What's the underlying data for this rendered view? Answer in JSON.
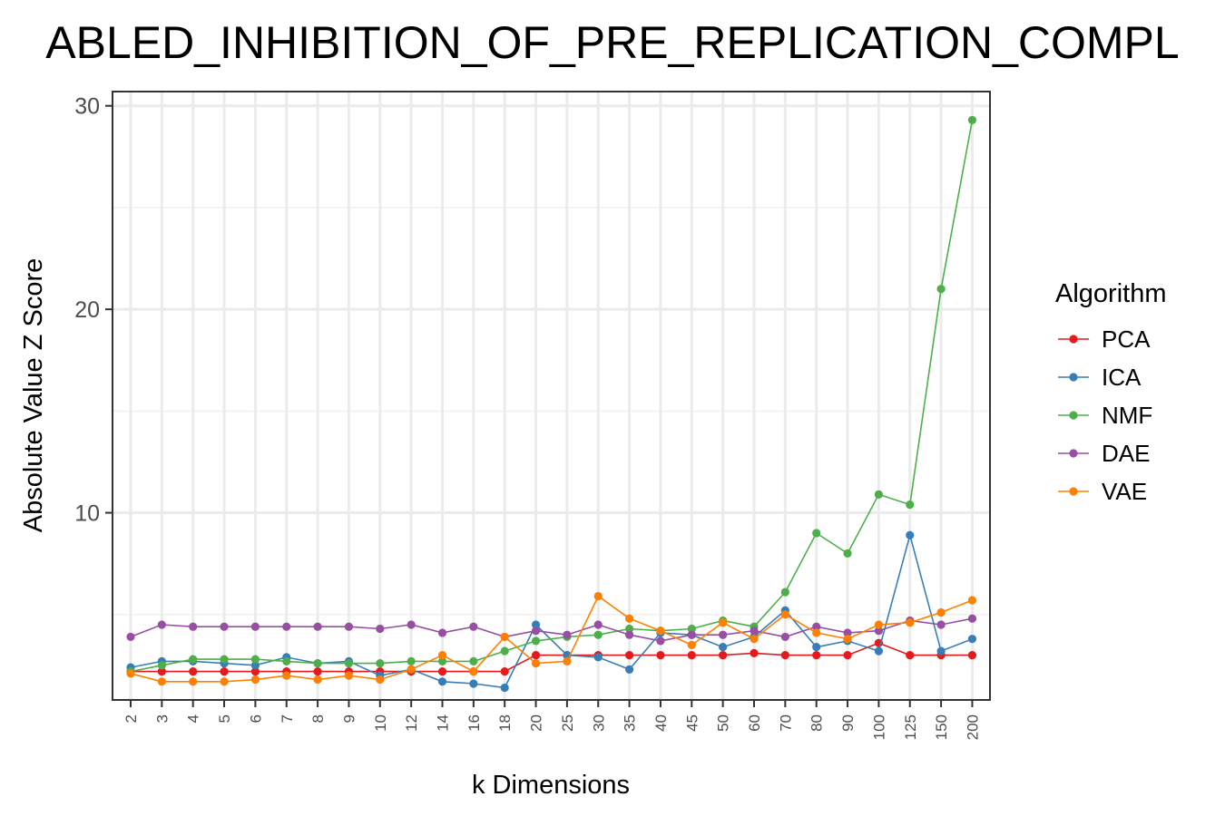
{
  "chart_data": {
    "type": "line",
    "title": "ABLED_INHIBITION_OF_PRE_REPLICATION_COMPL",
    "xlabel": "k Dimensions",
    "ylabel": "Absolute Value Z Score",
    "categories": [
      "2",
      "3",
      "4",
      "5",
      "6",
      "7",
      "8",
      "9",
      "10",
      "12",
      "14",
      "16",
      "18",
      "20",
      "25",
      "30",
      "35",
      "40",
      "45",
      "50",
      "60",
      "70",
      "80",
      "90",
      "100",
      "125",
      "150",
      "200"
    ],
    "yticks": [
      10,
      20,
      30
    ],
    "ylim": [
      0.8,
      30.7
    ],
    "grid": true,
    "legend_title": "Algorithm",
    "legend_position": "right",
    "series": [
      {
        "name": "PCA",
        "color": "#e41a1c",
        "values": [
          2.2,
          2.2,
          2.2,
          2.2,
          2.2,
          2.2,
          2.2,
          2.2,
          2.2,
          2.2,
          2.2,
          2.2,
          2.2,
          3.0,
          3.0,
          3.0,
          3.0,
          3.0,
          3.0,
          3.0,
          3.1,
          3.0,
          3.0,
          3.0,
          3.6,
          3.0,
          3.0,
          3.0
        ]
      },
      {
        "name": "ICA",
        "color": "#377eb8",
        "values": [
          2.4,
          2.7,
          2.7,
          2.6,
          2.5,
          2.9,
          2.6,
          2.7,
          2.0,
          2.3,
          1.7,
          1.6,
          1.4,
          4.5,
          3.0,
          2.9,
          2.3,
          4.1,
          4.0,
          3.4,
          3.9,
          5.2,
          3.4,
          3.7,
          3.2,
          8.9,
          3.2,
          3.8
        ]
      },
      {
        "name": "NMF",
        "color": "#4daf4a",
        "values": [
          2.2,
          2.5,
          2.8,
          2.8,
          2.8,
          2.7,
          2.6,
          2.6,
          2.6,
          2.7,
          2.7,
          2.7,
          3.2,
          3.7,
          3.9,
          4.0,
          4.3,
          4.2,
          4.3,
          4.7,
          4.4,
          6.1,
          9.0,
          8.0,
          10.9,
          10.4,
          21.0,
          29.3
        ]
      },
      {
        "name": "DAE",
        "color": "#984ea3",
        "values": [
          3.9,
          4.5,
          4.4,
          4.4,
          4.4,
          4.4,
          4.4,
          4.4,
          4.3,
          4.5,
          4.1,
          4.4,
          3.9,
          4.2,
          4.0,
          4.5,
          4.0,
          3.7,
          4.0,
          4.0,
          4.2,
          3.9,
          4.4,
          4.1,
          4.2,
          4.7,
          4.5,
          4.8
        ]
      },
      {
        "name": "VAE",
        "color": "#ff7f00",
        "values": [
          2.1,
          1.7,
          1.7,
          1.7,
          1.8,
          2.0,
          1.8,
          2.0,
          1.8,
          2.3,
          3.0,
          2.2,
          3.9,
          2.6,
          2.7,
          5.9,
          4.8,
          4.2,
          3.5,
          4.6,
          3.8,
          5.0,
          4.1,
          3.8,
          4.5,
          4.6,
          5.1,
          5.7
        ]
      }
    ]
  }
}
